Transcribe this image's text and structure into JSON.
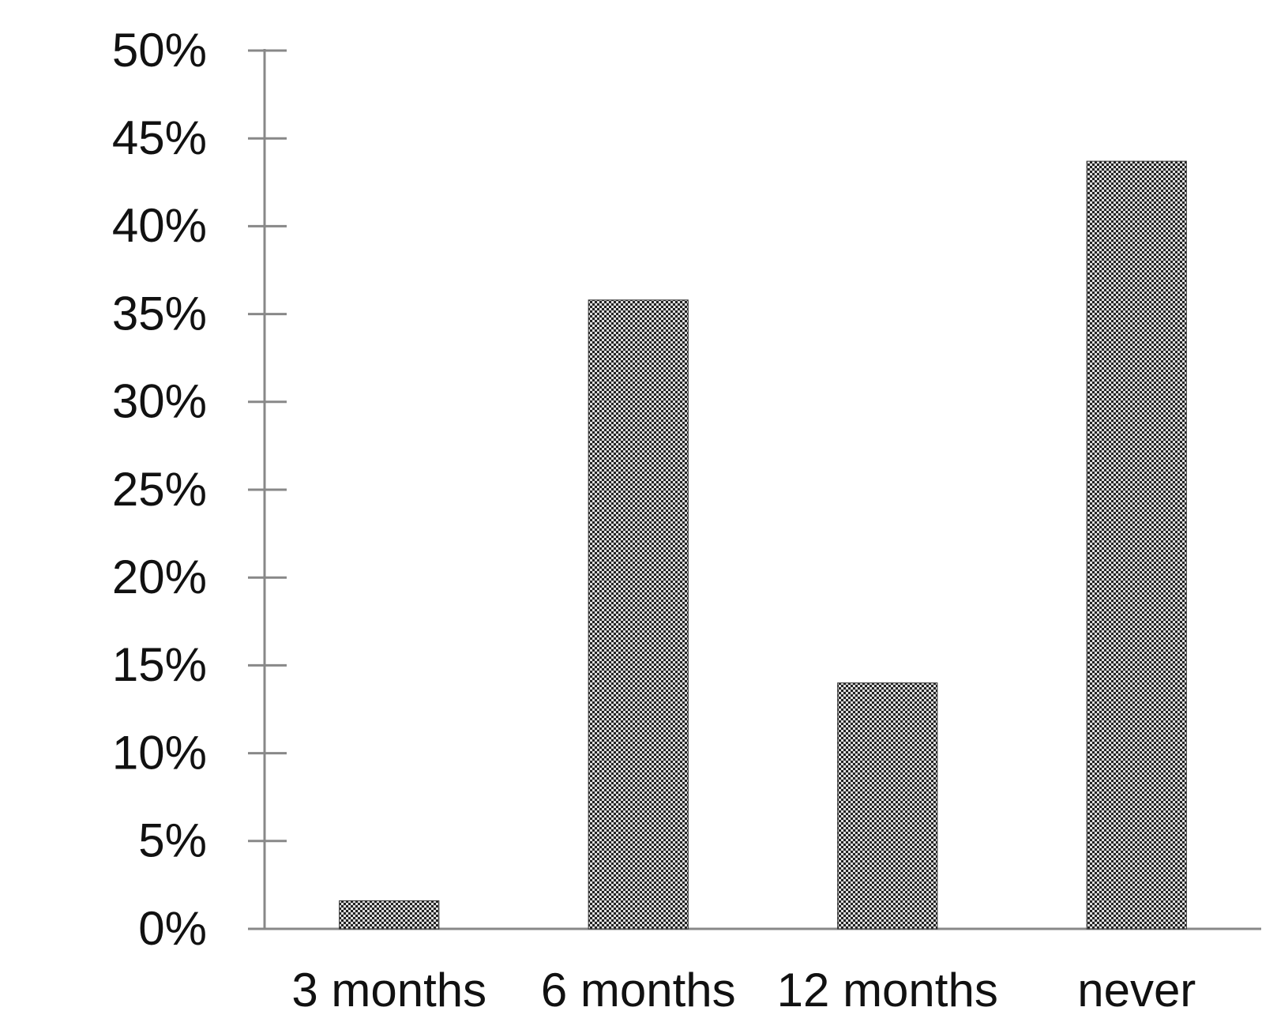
{
  "chart_data": {
    "type": "bar",
    "categories": [
      "3 months",
      "6 months",
      "12 months",
      "never"
    ],
    "values": [
      1.6,
      35.8,
      14.0,
      43.7
    ],
    "color": "#333333",
    "ylim": [
      0,
      50
    ],
    "yticks": [
      {
        "value": 0,
        "label": "0%"
      },
      {
        "value": 5,
        "label": "5%"
      },
      {
        "value": 10,
        "label": "10%"
      },
      {
        "value": 15,
        "label": "15%"
      },
      {
        "value": 20,
        "label": "20%"
      },
      {
        "value": 25,
        "label": "25%"
      },
      {
        "value": 30,
        "label": "30%"
      },
      {
        "value": 35,
        "label": "35%"
      },
      {
        "value": 40,
        "label": "40%"
      },
      {
        "value": 45,
        "label": "45%"
      },
      {
        "value": 50,
        "label": "50%"
      }
    ],
    "grid": false
  }
}
